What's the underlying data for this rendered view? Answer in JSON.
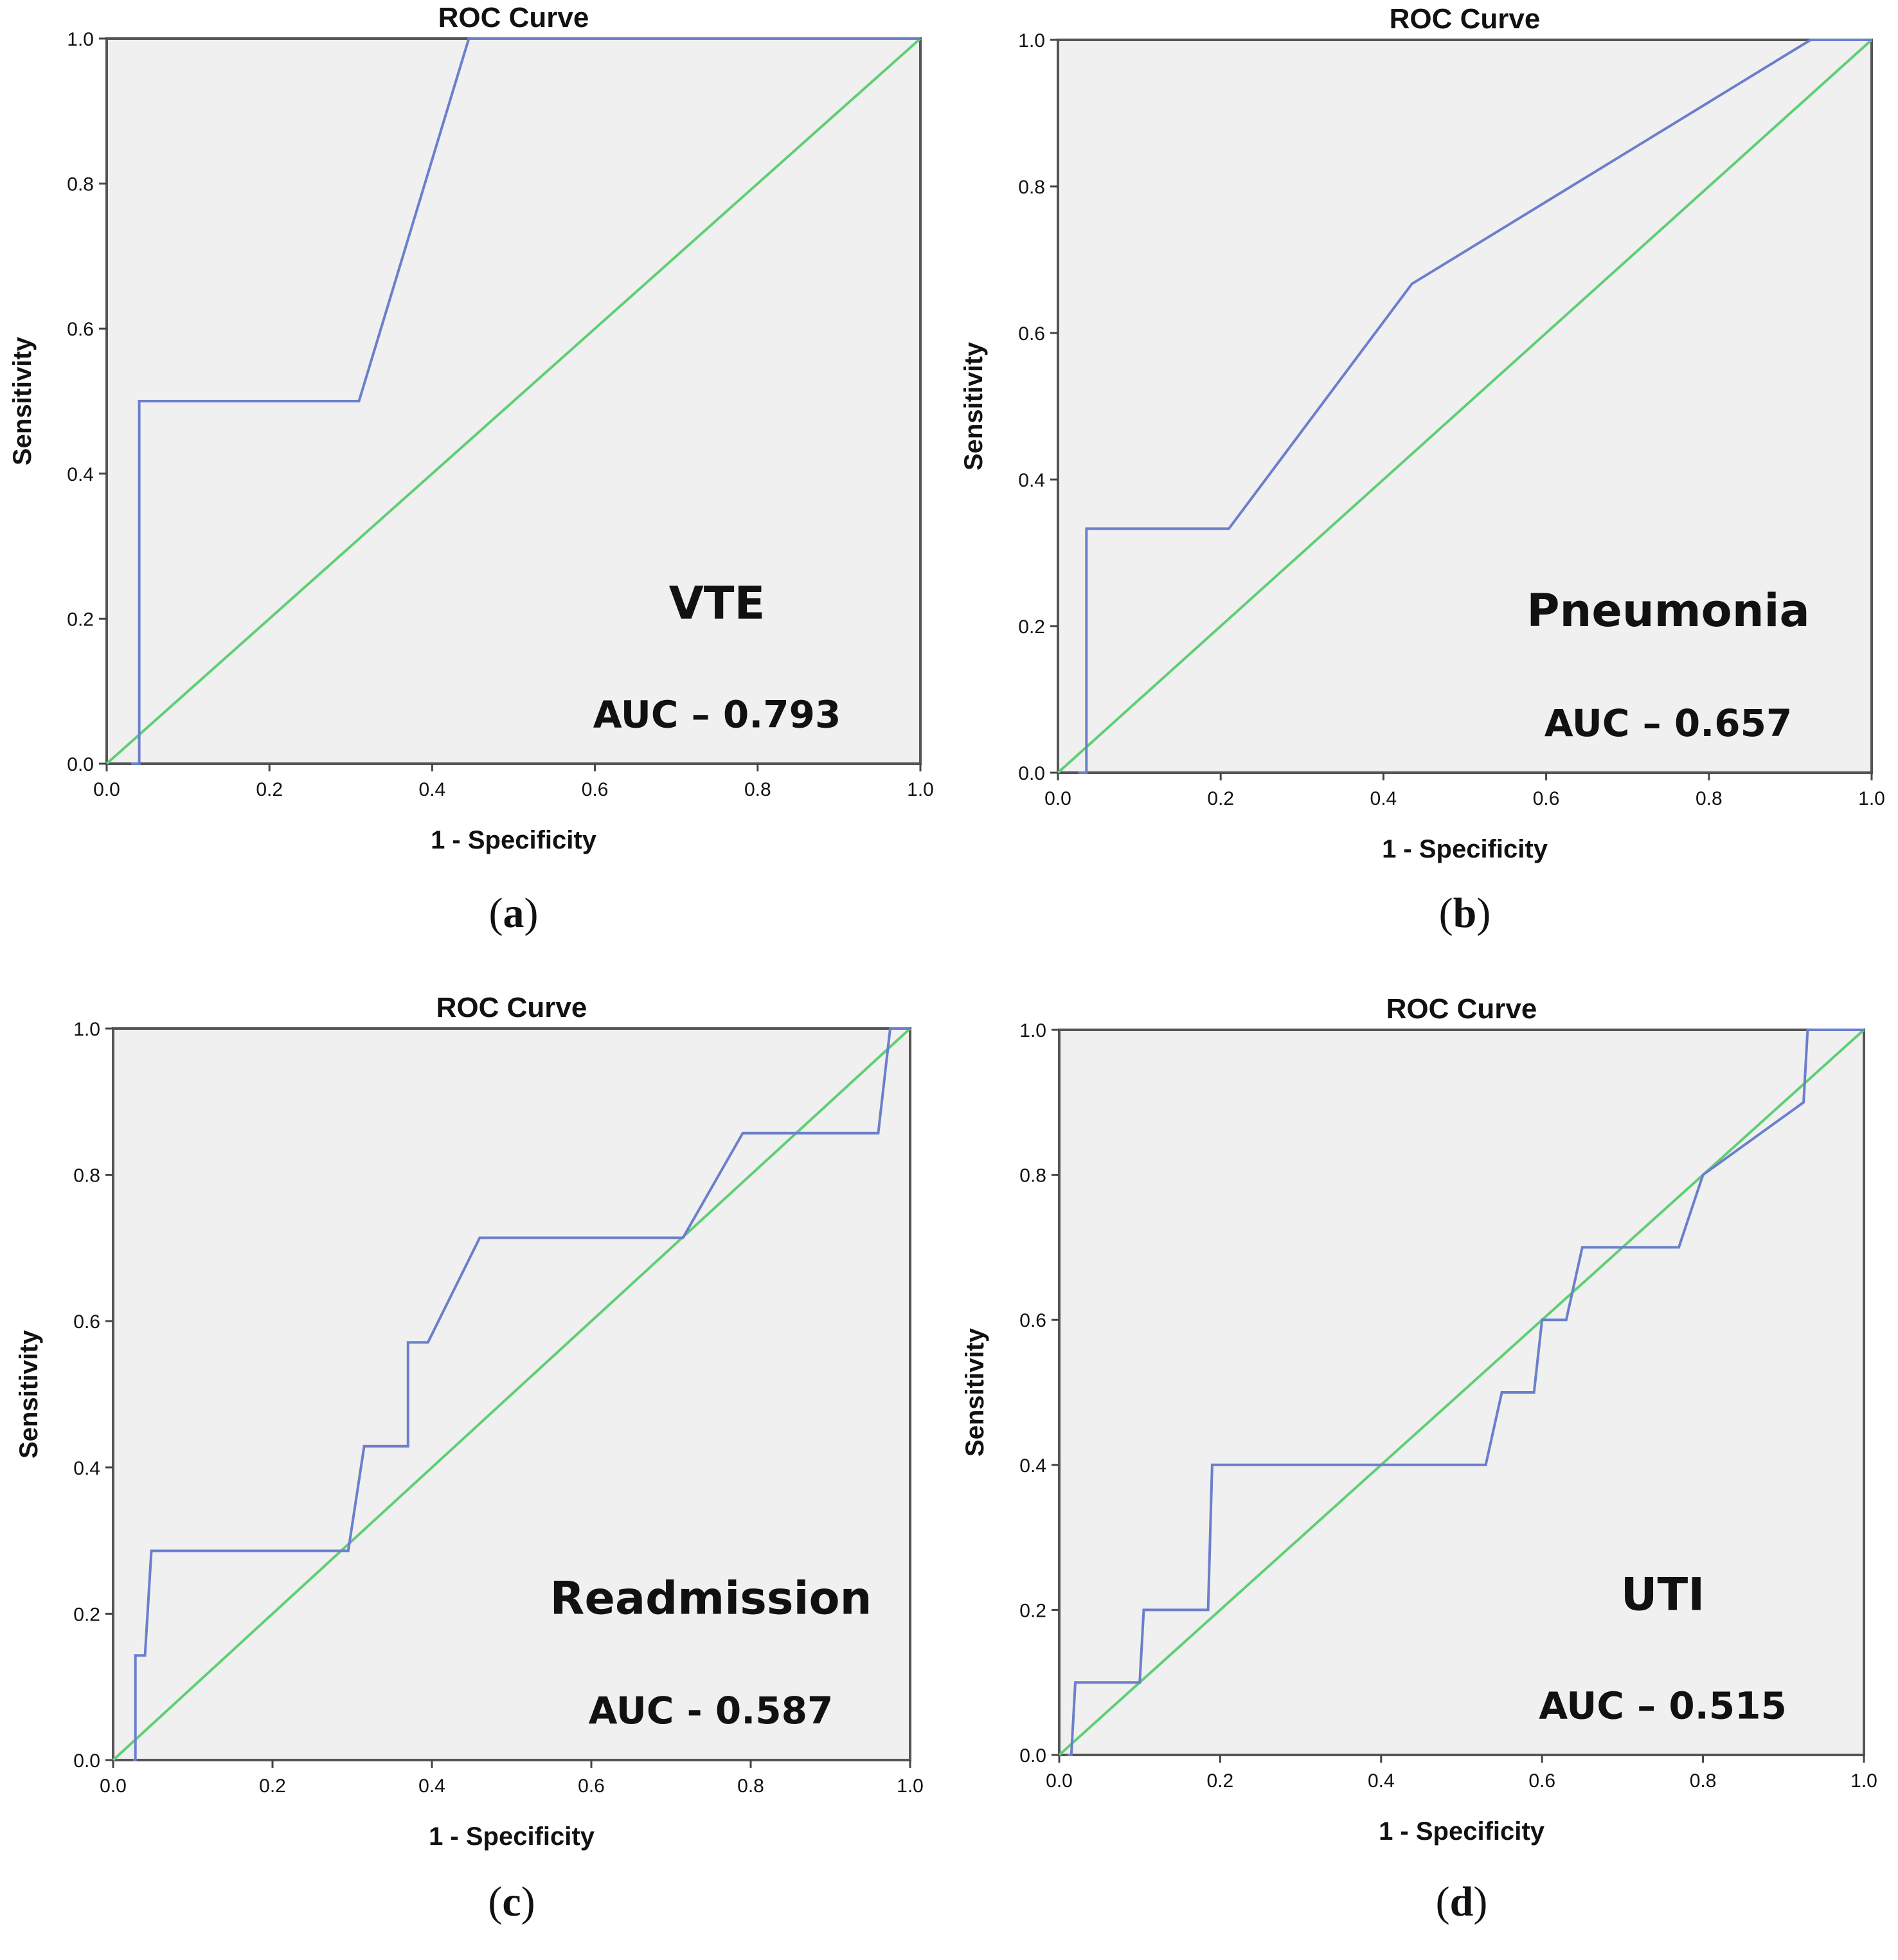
{
  "colors": {
    "roc": "#6b7fcc",
    "reference": "#5fcf74",
    "plot_background": "#f0f0f0",
    "frame": "#555555"
  },
  "chart_data": [
    {
      "type": "line",
      "title": "ROC Curve",
      "xlabel": "1 - Specificity",
      "ylabel": "Sensitivity",
      "xlim": [
        0,
        1
      ],
      "ylim": [
        0,
        1
      ],
      "x_ticks": [
        "0.0",
        "0.2",
        "0.4",
        "0.6",
        "0.8",
        "1.0"
      ],
      "y_ticks": [
        "0.0",
        "0.2",
        "0.4",
        "0.6",
        "0.8",
        "1.0"
      ],
      "annotation_label": "VTE",
      "annotation_auc": "AUC – 0.793",
      "panel_label": {
        "open": "(",
        "letter": "a",
        "close": ")"
      },
      "series": [
        {
          "name": "ROC",
          "x": [
            0.03,
            0.04,
            0.04,
            0.31,
            0.445,
            1.0
          ],
          "y": [
            0.0,
            0.0,
            0.5,
            0.5,
            1.0,
            1.0
          ]
        },
        {
          "name": "Reference Line",
          "x": [
            0,
            1
          ],
          "y": [
            0,
            1
          ]
        }
      ]
    },
    {
      "type": "line",
      "title": "ROC Curve",
      "xlabel": "1 - Specificity",
      "ylabel": "Sensitivity",
      "xlim": [
        0,
        1
      ],
      "ylim": [
        0,
        1
      ],
      "x_ticks": [
        "0.0",
        "0.2",
        "0.4",
        "0.6",
        "0.8",
        "1.0"
      ],
      "y_ticks": [
        "0.0",
        "0.2",
        "0.4",
        "0.6",
        "0.8",
        "1.0"
      ],
      "annotation_label": "Pneumonia",
      "annotation_auc": "AUC – 0.657",
      "panel_label": {
        "open": "(",
        "letter": "b",
        "close": ")"
      },
      "series": [
        {
          "name": "ROC",
          "x": [
            0.025,
            0.035,
            0.035,
            0.21,
            0.435,
            0.925,
            1.0
          ],
          "y": [
            0.0,
            0.0,
            0.333,
            0.333,
            0.667,
            1.0,
            1.0
          ]
        },
        {
          "name": "Reference Line",
          "x": [
            0,
            1
          ],
          "y": [
            0,
            1
          ]
        }
      ]
    },
    {
      "type": "line",
      "title": "ROC Curve",
      "xlabel": "1 - Specificity",
      "ylabel": "Sensitivity",
      "xlim": [
        0,
        1
      ],
      "ylim": [
        0,
        1
      ],
      "x_ticks": [
        "0.0",
        "0.2",
        "0.4",
        "0.6",
        "0.8",
        "1.0"
      ],
      "y_ticks": [
        "0.0",
        "0.2",
        "0.4",
        "0.6",
        "0.8",
        "1.0"
      ],
      "annotation_label": "Readmission",
      "annotation_auc": "AUC - 0.587",
      "panel_label": {
        "open": "(",
        "letter": "c",
        "close": ")"
      },
      "series": [
        {
          "name": "ROC",
          "x": [
            0.025,
            0.028,
            0.028,
            0.04,
            0.048,
            0.295,
            0.315,
            0.37,
            0.37,
            0.395,
            0.46,
            0.715,
            0.79,
            0.96,
            0.975,
            1.0
          ],
          "y": [
            0.0,
            0.0,
            0.143,
            0.143,
            0.286,
            0.286,
            0.429,
            0.429,
            0.571,
            0.571,
            0.714,
            0.714,
            0.857,
            0.857,
            1.0,
            1.0
          ]
        },
        {
          "name": "Reference Line",
          "x": [
            0,
            1
          ],
          "y": [
            0,
            1
          ]
        }
      ]
    },
    {
      "type": "line",
      "title": "ROC Curve",
      "xlabel": "1 - Specificity",
      "ylabel": "Sensitivity",
      "xlim": [
        0,
        1
      ],
      "ylim": [
        0,
        1
      ],
      "x_ticks": [
        "0.0",
        "0.2",
        "0.4",
        "0.6",
        "0.8",
        "1.0"
      ],
      "y_ticks": [
        "0.0",
        "0.2",
        "0.4",
        "0.6",
        "0.8",
        "1.0"
      ],
      "annotation_label": "UTI",
      "annotation_auc": "AUC – 0.515",
      "panel_label": {
        "open": "(",
        "letter": "d",
        "close": ")"
      },
      "series": [
        {
          "name": "ROC",
          "x": [
            0.01,
            0.015,
            0.02,
            0.1,
            0.105,
            0.185,
            0.19,
            0.53,
            0.55,
            0.59,
            0.6,
            0.63,
            0.65,
            0.77,
            0.8,
            0.925,
            0.93,
            1.0
          ],
          "y": [
            0.0,
            0.0,
            0.1,
            0.1,
            0.2,
            0.2,
            0.4,
            0.4,
            0.5,
            0.5,
            0.6,
            0.6,
            0.7,
            0.7,
            0.8,
            0.9,
            1.0,
            1.0
          ]
        },
        {
          "name": "Reference Line",
          "x": [
            0,
            1
          ],
          "y": [
            0,
            1
          ]
        }
      ]
    }
  ]
}
